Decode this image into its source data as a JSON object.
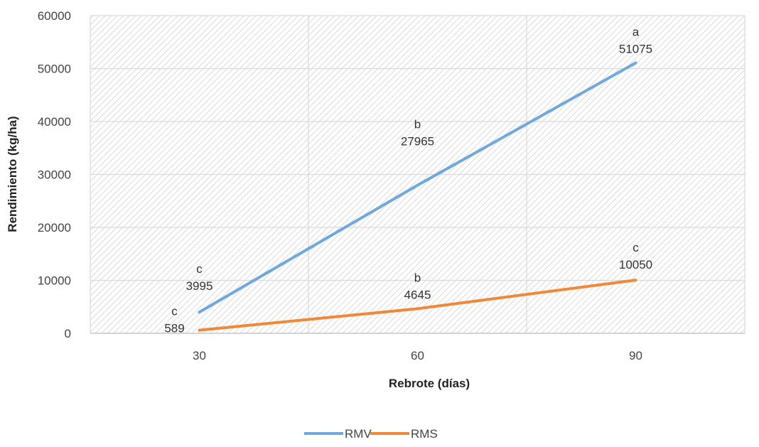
{
  "chart_data": {
    "type": "line",
    "xlabel": "Rebrote (días)",
    "ylabel": "Rendimiento (kg/ha)",
    "categories": [
      "30",
      "60",
      "90"
    ],
    "ylim": [
      0,
      60000
    ],
    "yticks": [
      "0",
      "10000",
      "20000",
      "30000",
      "40000",
      "50000",
      "60000"
    ],
    "grid": true,
    "legend_position": "bottom",
    "series": [
      {
        "name": "RMV",
        "color": "#6fa8dc",
        "values": [
          3995,
          27965,
          51075
        ],
        "value_labels": [
          "3995",
          "27965",
          "51075"
        ],
        "letters": [
          "c",
          "b",
          "a"
        ]
      },
      {
        "name": "RMS",
        "color": "#f0883a",
        "values": [
          589,
          4645,
          10050
        ],
        "value_labels": [
          "589",
          "4645",
          "10050"
        ],
        "letters": [
          "c",
          "b",
          "c"
        ]
      }
    ]
  }
}
